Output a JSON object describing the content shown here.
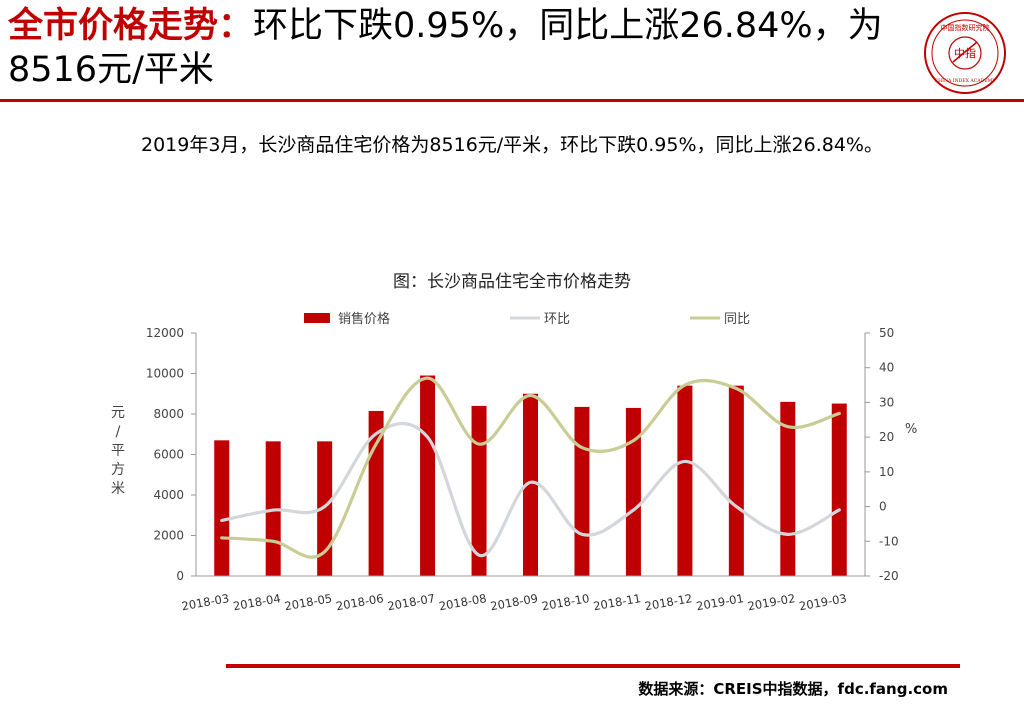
{
  "header": {
    "title_highlight": "全市价格走势：",
    "title_rest": "环比下跌0.95%，同比上涨26.84%，为8516元/平米",
    "logo_text": "中国指数研究院",
    "logo_center": "中指",
    "logo_en": "CHINA INDEX ACADEMY"
  },
  "summary": "2019年3月，长沙商品住宅价格为8516元/平米，环比下跌0.95%，同比上涨26.84%。",
  "source": "数据来源：CREIS中指数据，fdc.fang.com",
  "colors": {
    "accent": "#c00000",
    "bar": "#c00000",
    "mom_line": "#d3d7db",
    "yoy_line": "#c9cc94"
  },
  "chart_data": {
    "type": "bar+line",
    "title": "图：长沙商品住宅全市价格走势",
    "categories": [
      "2018-03",
      "2018-04",
      "2018-05",
      "2018-06",
      "2018-07",
      "2018-08",
      "2018-09",
      "2018-10",
      "2018-11",
      "2018-12",
      "2019-01",
      "2019-02",
      "2019-03"
    ],
    "ylabel_left": "元/平方米",
    "ylabel_right": "%",
    "ylim_left": [
      0,
      12000
    ],
    "yticks_left": [
      "0",
      "2000",
      "4000",
      "6000",
      "8000",
      "10000",
      "12000"
    ],
    "ylim_right": [
      -20,
      50
    ],
    "yticks_right": [
      "-20",
      "-10",
      "0",
      "10",
      "20",
      "30",
      "40",
      "50"
    ],
    "legend_position": "top",
    "series": [
      {
        "name": "销售价格",
        "type": "bar",
        "axis": "left",
        "values": [
          6700,
          6650,
          6650,
          8150,
          9900,
          8400,
          9000,
          8350,
          8300,
          9400,
          9400,
          8600,
          8516
        ]
      },
      {
        "name": "环比",
        "type": "line",
        "axis": "right",
        "values": [
          -4,
          -1,
          0,
          21,
          20,
          -14,
          7,
          -8,
          -1,
          13,
          0,
          -8,
          -0.95
        ]
      },
      {
        "name": "同比",
        "type": "line",
        "axis": "right",
        "values": [
          -9,
          -10,
          -13,
          18,
          37,
          18,
          32,
          17,
          19,
          35,
          34,
          23,
          26.84
        ]
      }
    ]
  }
}
